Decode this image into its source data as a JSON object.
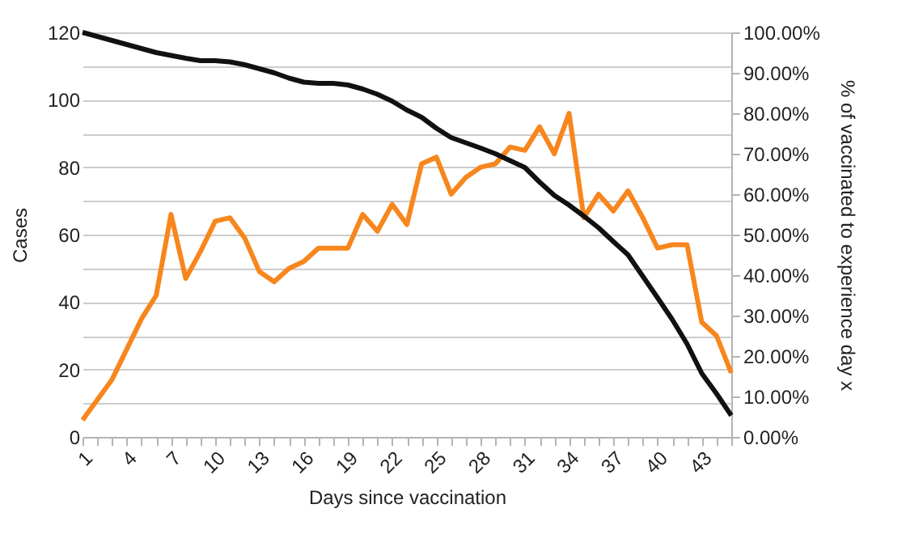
{
  "chart_data": {
    "type": "line",
    "xlabel": "Days since vaccination",
    "ylabel": "Cases",
    "y2label": "% of vaccinated to experience day x",
    "categories": [
      "1",
      null,
      null,
      "4",
      null,
      null,
      "7",
      null,
      null,
      "10",
      null,
      null,
      "13",
      null,
      null,
      "16",
      null,
      null,
      "19",
      null,
      null,
      "22",
      null,
      null,
      "25",
      null,
      null,
      "28",
      null,
      null,
      "31",
      null,
      null,
      "34",
      null,
      null,
      "37",
      null,
      null,
      "40",
      null,
      null,
      "43",
      null,
      null
    ],
    "series": [
      {
        "color": "#f7861d",
        "values": [
          5,
          11,
          17,
          26,
          35,
          42,
          66,
          47,
          55,
          64,
          65,
          59,
          49,
          46,
          50,
          52,
          56,
          56,
          56,
          66,
          61,
          69,
          63,
          81,
          83,
          72,
          77,
          80,
          81,
          86,
          85,
          92,
          84,
          96,
          65,
          72,
          67,
          73,
          65,
          56,
          57,
          57,
          34,
          30,
          19
        ]
      },
      {
        "color": "#111111",
        "axis": "y2",
        "values": [
          100,
          99,
          98,
          97,
          96,
          95,
          94.3,
          93.6,
          93,
          93,
          92.7,
          92,
          91,
          90,
          88.7,
          87.7,
          87.4,
          87.4,
          87,
          86,
          84.7,
          83,
          80.8,
          79,
          76.3,
          74,
          72.7,
          71.4,
          70,
          68.3,
          66.6,
          63,
          59.7,
          57.3,
          54.6,
          51.7,
          48.3,
          45,
          39.7,
          34.4,
          29,
          23,
          15.7,
          10.7,
          5.3
        ]
      }
    ],
    "ylim": [
      0,
      120
    ],
    "yticks": [
      0,
      {
        "value": 10,
        "label": null
      },
      20,
      {
        "value": 30,
        "label": null
      },
      40,
      {
        "value": 50,
        "label": null
      },
      60,
      {
        "value": 70,
        "label": null
      },
      80,
      {
        "value": 90,
        "label": null
      },
      100,
      {
        "value": 110,
        "label": null
      },
      120
    ],
    "y2lim": [
      0,
      100
    ],
    "y2ticks": [
      {
        "value": 0,
        "label": "0.00%"
      },
      {
        "value": 10,
        "label": "10.00%"
      },
      {
        "value": 20,
        "label": "20.00%"
      },
      {
        "value": 30,
        "label": "30.00%"
      },
      {
        "value": 40,
        "label": "40.00%"
      },
      {
        "value": 50,
        "label": "50.00%"
      },
      {
        "value": 60,
        "label": "60.00%"
      },
      {
        "value": 70,
        "label": "70.00%"
      },
      {
        "value": 80,
        "label": "80.00%"
      },
      {
        "value": 90,
        "label": "90.00%"
      },
      {
        "value": 100,
        "label": "100.00%"
      }
    ],
    "grid": "y",
    "line_style": "solid",
    "marker": "none"
  }
}
